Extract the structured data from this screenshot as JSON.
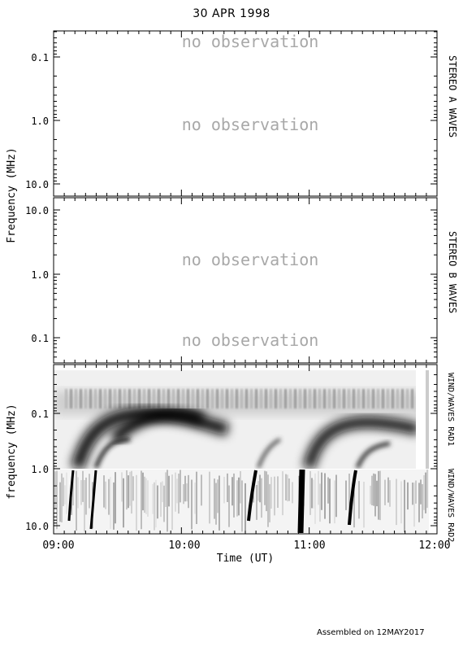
{
  "date_title": "30 APR 1998",
  "footer": "Assembled on 12MAY2017",
  "no_observation": "no observation",
  "chart_data": [
    {
      "type": "heatmap",
      "panel_label": "STEREO A WAVES",
      "ylabel": "Frequency (MHz)",
      "y_scale": "log",
      "y_ticks": [
        "0.1",
        "1.0",
        "10.0"
      ],
      "status": [
        "no observation",
        "no observation"
      ]
    },
    {
      "type": "heatmap",
      "panel_label": "STEREO B WAVES",
      "y_scale": "log",
      "y_ticks": [
        "10.0",
        "1.0",
        "0.1"
      ],
      "status": [
        "no observation",
        "no observation"
      ]
    },
    {
      "type": "heatmap",
      "panel_label_top": "WIND/WAVES RAD1",
      "panel_label_bottom": "WIND/WAVES RAD2",
      "ylabel": "frequency (MHz)",
      "y_scale": "log",
      "y_ticks": [
        "0.1",
        "1.0",
        "10.0"
      ],
      "xlabel": "Time (UT)",
      "x_ticks": [
        "09:00",
        "10:00",
        "11:00",
        "12:00"
      ],
      "xlim": [
        "09:00",
        "12:00"
      ],
      "colormap": "grayscale (dark = intense)"
    }
  ]
}
